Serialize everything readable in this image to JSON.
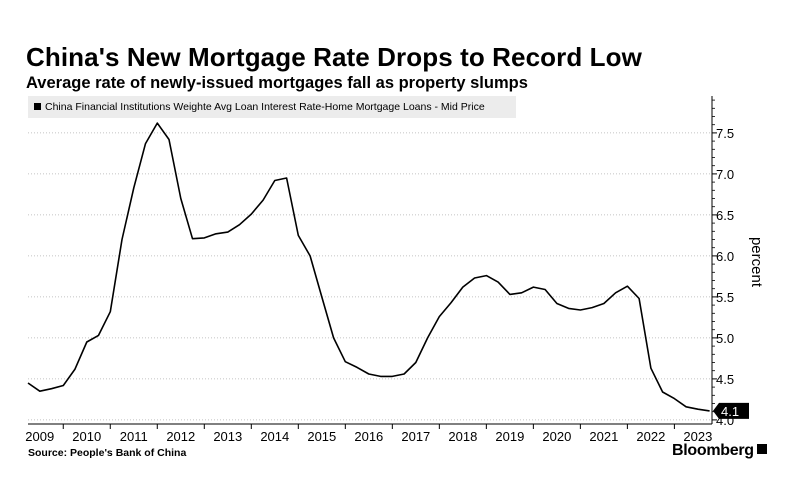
{
  "title": "China's New Mortgage Rate Drops to Record Low",
  "subtitle": "Average rate of newly-issued mortgages fall as property slumps",
  "legend_label": "China Financial Institutions Weighte Avg Loan Interest Rate-Home Mortgage Loans - Mid Price",
  "source": "Source:  People's Bank of China",
  "brand": "Bloomberg",
  "colors": {
    "line": "#000000",
    "grid": "#b0b0b0",
    "legend_bg": "#ececec",
    "callout": "#000000"
  },
  "chart_data": {
    "type": "line",
    "ylabel": "percent",
    "ylim": [
      3.95,
      7.95
    ],
    "yticks": [
      "4.0",
      "4.5",
      "5.0",
      "5.5",
      "6.0",
      "6.5",
      "7.0",
      "7.5"
    ],
    "xlim": [
      2008.75,
      2023.3
    ],
    "xticks": [
      "2009",
      "2010",
      "2011",
      "2012",
      "2013",
      "2014",
      "2015",
      "2016",
      "2017",
      "2018",
      "2019",
      "2020",
      "2021",
      "2022",
      "2023"
    ],
    "y_axis_position": "right",
    "grid": "horizontal-dotted",
    "legend": "top-left",
    "last_value_label": "4.1",
    "series": [
      {
        "name": "China Financial Institutions Weighte Avg Loan Interest Rate-Home Mortgage Loans - Mid Price",
        "x": [
          2008.75,
          2009.0,
          2009.25,
          2009.5,
          2009.75,
          2010.0,
          2010.25,
          2010.5,
          2010.75,
          2011.0,
          2011.25,
          2011.5,
          2011.75,
          2012.0,
          2012.25,
          2012.5,
          2012.75,
          2013.0,
          2013.25,
          2013.5,
          2013.75,
          2014.0,
          2014.25,
          2014.5,
          2014.75,
          2015.0,
          2015.25,
          2015.5,
          2015.75,
          2016.0,
          2016.25,
          2016.5,
          2016.75,
          2017.0,
          2017.25,
          2017.5,
          2017.75,
          2018.0,
          2018.25,
          2018.5,
          2018.75,
          2019.0,
          2019.25,
          2019.5,
          2019.75,
          2020.0,
          2020.25,
          2020.5,
          2020.75,
          2021.0,
          2021.25,
          2021.5,
          2021.75,
          2022.0,
          2022.25,
          2022.5,
          2022.75,
          2023.0,
          2023.25
        ],
        "values": [
          4.45,
          4.35,
          4.38,
          4.42,
          4.62,
          4.95,
          5.03,
          5.32,
          6.2,
          6.83,
          7.37,
          7.62,
          7.42,
          6.7,
          6.21,
          6.22,
          6.27,
          6.29,
          6.38,
          6.51,
          6.68,
          6.92,
          6.95,
          6.25,
          6.0,
          5.5,
          5.0,
          4.71,
          4.64,
          4.56,
          4.53,
          4.53,
          4.56,
          4.7,
          5.0,
          5.26,
          5.43,
          5.62,
          5.73,
          5.76,
          5.68,
          5.53,
          5.55,
          5.62,
          5.59,
          5.42,
          5.36,
          5.34,
          5.37,
          5.42,
          5.55,
          5.63,
          5.48,
          4.63,
          4.34,
          4.26,
          4.16,
          4.13,
          4.11
        ]
      }
    ]
  }
}
